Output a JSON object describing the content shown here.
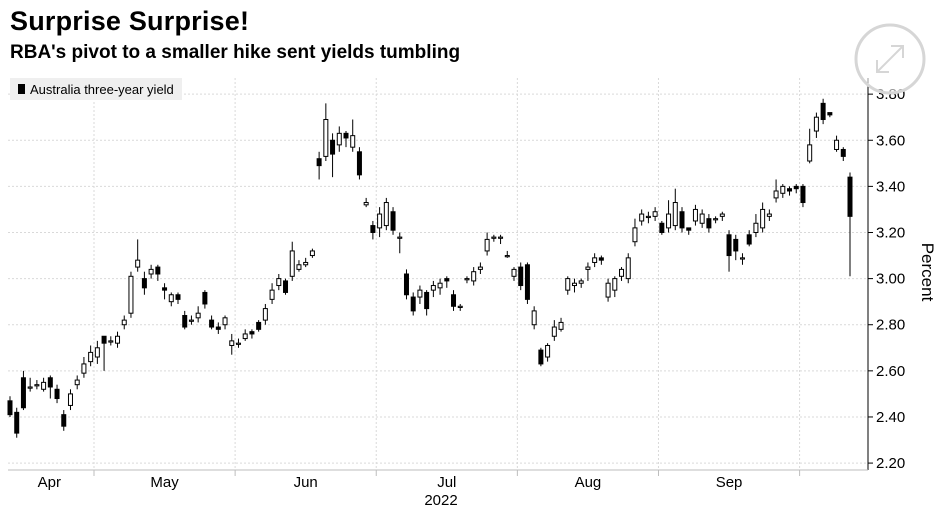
{
  "title": "Surprise Surprise!",
  "subtitle": "RBA's pivot to a smaller hike sent yields tumbling",
  "legend_label": "Australia three-year yield",
  "expand_icon": "expand-icon",
  "chart_data": {
    "type": "candlestick",
    "series_name": "Australia three-year yield",
    "ylabel": "Percent",
    "xlabel": "2022",
    "ylim": [
      2.17,
      3.87
    ],
    "yticks": [
      2.2,
      2.4,
      2.6,
      2.8,
      3.0,
      3.2,
      3.4,
      3.6,
      3.8
    ],
    "ytick_labels": [
      "2.20",
      "2.40",
      "2.60",
      "2.80",
      "3.00",
      "3.20",
      "3.40",
      "3.60",
      "3.80"
    ],
    "xticks": [
      "Apr",
      "May",
      "Jun",
      "Jul",
      "Aug",
      "Sep"
    ],
    "grid": true,
    "legend_position": "top-left",
    "candles": [
      [
        2.47,
        2.41,
        2.49,
        2.4
      ],
      [
        2.42,
        2.33,
        2.44,
        2.31
      ],
      [
        2.57,
        2.44,
        2.6,
        2.43
      ],
      [
        2.53,
        2.53,
        2.57,
        2.51
      ],
      [
        2.54,
        2.54,
        2.56,
        2.52
      ],
      [
        2.52,
        2.55,
        2.57,
        2.51
      ],
      [
        2.57,
        2.53,
        2.58,
        2.48
      ],
      [
        2.52,
        2.48,
        2.54,
        2.46
      ],
      [
        2.41,
        2.36,
        2.43,
        2.34
      ],
      [
        2.45,
        2.5,
        2.52,
        2.43
      ],
      [
        2.54,
        2.56,
        2.58,
        2.52
      ],
      [
        2.59,
        2.63,
        2.66,
        2.57
      ],
      [
        2.64,
        2.68,
        2.71,
        2.62
      ],
      [
        2.66,
        2.7,
        2.73,
        2.63
      ],
      [
        2.75,
        2.72,
        2.75,
        2.6
      ],
      [
        2.73,
        2.73,
        2.75,
        2.71
      ],
      [
        2.72,
        2.75,
        2.77,
        2.7
      ],
      [
        2.8,
        2.82,
        2.84,
        2.78
      ],
      [
        2.85,
        3.01,
        3.03,
        2.83
      ],
      [
        3.05,
        3.08,
        3.17,
        3.03
      ],
      [
        3.0,
        2.96,
        3.03,
        2.93
      ],
      [
        3.02,
        3.04,
        3.06,
        3.0
      ],
      [
        3.05,
        3.02,
        3.06,
        2.99
      ],
      [
        2.96,
        2.95,
        2.98,
        2.91
      ],
      [
        2.9,
        2.93,
        2.94,
        2.88
      ],
      [
        2.93,
        2.91,
        2.94,
        2.89
      ],
      [
        2.84,
        2.79,
        2.86,
        2.78
      ],
      [
        2.82,
        2.82,
        2.84,
        2.8
      ],
      [
        2.83,
        2.85,
        2.88,
        2.81
      ],
      [
        2.94,
        2.89,
        2.95,
        2.87
      ],
      [
        2.82,
        2.79,
        2.84,
        2.78
      ],
      [
        2.79,
        2.78,
        2.81,
        2.76
      ],
      [
        2.8,
        2.83,
        2.84,
        2.78
      ],
      [
        2.71,
        2.73,
        2.76,
        2.67
      ],
      [
        2.72,
        2.72,
        2.74,
        2.7
      ],
      [
        2.74,
        2.76,
        2.78,
        2.73
      ],
      [
        2.77,
        2.76,
        2.78,
        2.74
      ],
      [
        2.81,
        2.78,
        2.82,
        2.77
      ],
      [
        2.82,
        2.87,
        2.89,
        2.8
      ],
      [
        2.91,
        2.95,
        2.98,
        2.89
      ],
      [
        2.97,
        3.0,
        3.02,
        2.95
      ],
      [
        2.99,
        2.94,
        3.0,
        2.93
      ],
      [
        3.01,
        3.12,
        3.16,
        2.99
      ],
      [
        3.04,
        3.06,
        3.08,
        3.03
      ],
      [
        3.06,
        3.07,
        3.09,
        3.05
      ],
      [
        3.1,
        3.12,
        3.13,
        3.09
      ],
      [
        3.52,
        3.49,
        3.55,
        3.43
      ],
      [
        3.53,
        3.69,
        3.76,
        3.51
      ],
      [
        3.6,
        3.54,
        3.63,
        3.44
      ],
      [
        3.58,
        3.63,
        3.66,
        3.55
      ],
      [
        3.63,
        3.61,
        3.64,
        3.57
      ],
      [
        3.57,
        3.62,
        3.69,
        3.55
      ],
      [
        3.55,
        3.45,
        3.57,
        3.43
      ],
      [
        3.32,
        3.33,
        3.35,
        3.31
      ],
      [
        3.23,
        3.2,
        3.25,
        3.17
      ],
      [
        3.22,
        3.28,
        3.31,
        3.18
      ],
      [
        3.23,
        3.33,
        3.35,
        3.21
      ],
      [
        3.29,
        3.21,
        3.31,
        3.19
      ],
      [
        3.18,
        3.18,
        3.2,
        3.11
      ],
      [
        3.02,
        2.93,
        3.04,
        2.91
      ],
      [
        2.92,
        2.86,
        2.94,
        2.84
      ],
      [
        2.92,
        2.95,
        2.97,
        2.89
      ],
      [
        2.94,
        2.87,
        2.95,
        2.84
      ],
      [
        2.95,
        2.97,
        2.99,
        2.92
      ],
      [
        2.96,
        2.98,
        3.0,
        2.93
      ],
      [
        3.0,
        2.99,
        3.01,
        2.96
      ],
      [
        2.93,
        2.88,
        2.95,
        2.86
      ],
      [
        2.88,
        2.88,
        2.89,
        2.86
      ],
      [
        3.0,
        3.0,
        3.01,
        2.98
      ],
      [
        2.99,
        3.03,
        3.05,
        2.97
      ],
      [
        3.04,
        3.05,
        3.07,
        3.02
      ],
      [
        3.12,
        3.17,
        3.2,
        3.1
      ],
      [
        3.18,
        3.18,
        3.19,
        3.16
      ],
      [
        3.18,
        3.18,
        3.19,
        3.15
      ],
      [
        3.1,
        3.1,
        3.12,
        3.09
      ],
      [
        3.01,
        3.04,
        3.05,
        2.99
      ],
      [
        3.05,
        2.97,
        3.07,
        2.95
      ],
      [
        3.06,
        2.91,
        3.07,
        2.89
      ],
      [
        2.8,
        2.86,
        2.88,
        2.78
      ],
      [
        2.69,
        2.63,
        2.7,
        2.62
      ],
      [
        2.66,
        2.71,
        2.72,
        2.64
      ],
      [
        2.75,
        2.79,
        2.82,
        2.73
      ],
      [
        2.78,
        2.81,
        2.83,
        2.77
      ],
      [
        2.95,
        3.0,
        3.01,
        2.93
      ],
      [
        2.97,
        2.98,
        3.0,
        2.94
      ],
      [
        2.98,
        2.99,
        3.0,
        2.96
      ],
      [
        3.04,
        3.05,
        3.07,
        2.99
      ],
      [
        3.07,
        3.09,
        3.11,
        3.05
      ],
      [
        3.09,
        3.08,
        3.1,
        3.06
      ],
      [
        2.92,
        2.98,
        3.0,
        2.9
      ],
      [
        2.95,
        3.0,
        3.01,
        2.92
      ],
      [
        3.01,
        3.04,
        3.05,
        2.99
      ],
      [
        3.0,
        3.09,
        3.11,
        2.98
      ],
      [
        3.16,
        3.22,
        3.26,
        3.14
      ],
      [
        3.25,
        3.28,
        3.3,
        3.23
      ],
      [
        3.27,
        3.27,
        3.29,
        3.24
      ],
      [
        3.27,
        3.29,
        3.31,
        3.25
      ],
      [
        3.24,
        3.2,
        3.25,
        3.19
      ],
      [
        3.22,
        3.28,
        3.34,
        3.2
      ],
      [
        3.23,
        3.33,
        3.39,
        3.21
      ],
      [
        3.29,
        3.22,
        3.31,
        3.2
      ],
      [
        3.22,
        3.21,
        3.22,
        3.19
      ],
      [
        3.25,
        3.3,
        3.32,
        3.23
      ],
      [
        3.24,
        3.28,
        3.3,
        3.22
      ],
      [
        3.26,
        3.22,
        3.28,
        3.2
      ],
      [
        3.26,
        3.26,
        3.27,
        3.24
      ],
      [
        3.27,
        3.28,
        3.29,
        3.25
      ],
      [
        3.19,
        3.1,
        3.21,
        3.03
      ],
      [
        3.17,
        3.12,
        3.19,
        3.08
      ],
      [
        3.09,
        3.09,
        3.11,
        3.06
      ],
      [
        3.19,
        3.15,
        3.21,
        3.14
      ],
      [
        3.2,
        3.24,
        3.28,
        3.18
      ],
      [
        3.22,
        3.3,
        3.33,
        3.2
      ],
      [
        3.27,
        3.28,
        3.3,
        3.25
      ],
      [
        3.35,
        3.38,
        3.43,
        3.33
      ],
      [
        3.37,
        3.4,
        3.41,
        3.35
      ],
      [
        3.39,
        3.38,
        3.4,
        3.36
      ],
      [
        3.4,
        3.39,
        3.41,
        3.37
      ],
      [
        3.4,
        3.33,
        3.41,
        3.31
      ],
      [
        3.51,
        3.58,
        3.65,
        3.5
      ],
      [
        3.64,
        3.7,
        3.72,
        3.61
      ],
      [
        3.76,
        3.69,
        3.78,
        3.67
      ],
      [
        3.72,
        3.71,
        3.72,
        3.7
      ],
      [
        3.56,
        3.6,
        3.62,
        3.55
      ],
      [
        3.56,
        3.53,
        3.57,
        3.51
      ],
      [
        3.44,
        3.27,
        3.46,
        3.01
      ]
    ]
  }
}
